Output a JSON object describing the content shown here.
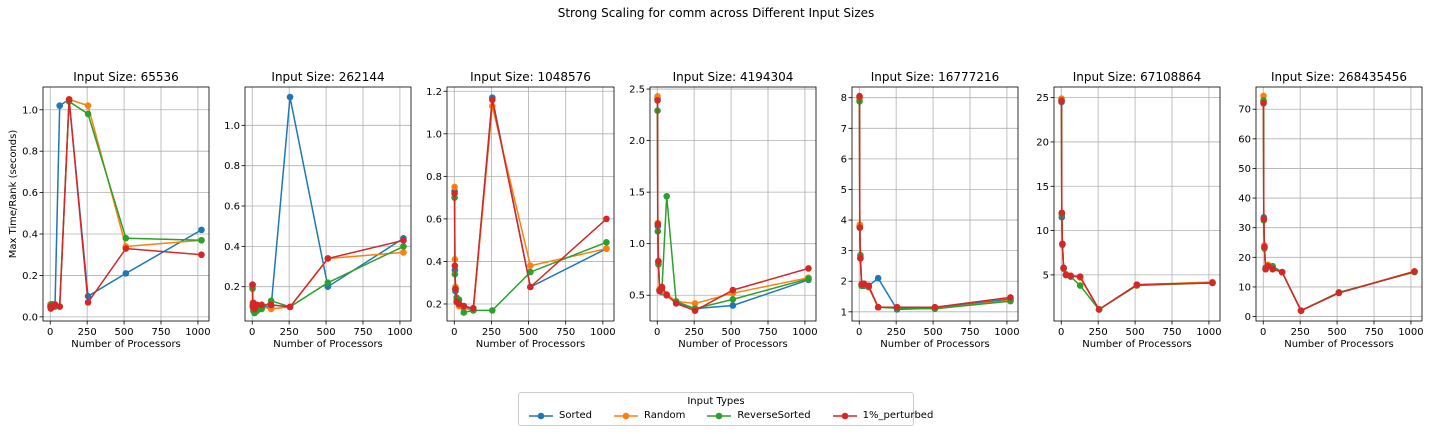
{
  "figure": {
    "suptitle": "Strong Scaling for comm across Different Input Sizes",
    "ylabel": "Max Time/Rank (seconds)",
    "xlabel": "Number of Processors"
  },
  "legend": {
    "title": "Input Types",
    "entries": [
      "Sorted",
      "Random",
      "ReverseSorted",
      "1%_perturbed"
    ]
  },
  "colors": {
    "Sorted": "#1f77b4",
    "Random": "#ff7f0e",
    "ReverseSorted": "#2ca02c",
    "1%_perturbed": "#d62728"
  },
  "chart_data": [
    {
      "type": "line",
      "title": "Input Size: 65536",
      "x": [
        2,
        4,
        8,
        16,
        32,
        64,
        128,
        256,
        512,
        1024
      ],
      "xlim": [
        -49,
        1075
      ],
      "ylim": [
        -0.02,
        1.11
      ],
      "xticks": [
        0,
        250,
        500,
        750,
        1000
      ],
      "xtick_labels": [
        "0",
        "250",
        "500",
        "750",
        "1000"
      ],
      "yticks": [
        0.0,
        0.2,
        0.4,
        0.6,
        0.8,
        1.0
      ],
      "ytick_labels": [
        "0.0",
        "0.2",
        "0.4",
        "0.6",
        "0.8",
        "1.0"
      ],
      "series": [
        {
          "name": "Sorted",
          "values": [
            0.06,
            0.05,
            0.05,
            0.06,
            0.05,
            1.02,
            1.05,
            0.1,
            0.21,
            0.42
          ]
        },
        {
          "name": "Random",
          "values": [
            0.05,
            0.06,
            0.05,
            0.06,
            0.06,
            0.05,
            1.05,
            1.02,
            0.34,
            0.37
          ]
        },
        {
          "name": "ReverseSorted",
          "values": [
            0.05,
            0.05,
            0.06,
            0.05,
            0.05,
            0.05,
            1.04,
            0.98,
            0.38,
            0.37
          ]
        },
        {
          "name": "1%_perturbed",
          "values": [
            0.05,
            0.04,
            0.05,
            0.05,
            0.06,
            0.05,
            1.05,
            0.07,
            0.33,
            0.3
          ]
        }
      ]
    },
    {
      "type": "line",
      "title": "Input Size: 262144",
      "x": [
        2,
        4,
        8,
        16,
        32,
        64,
        128,
        256,
        512,
        1024
      ],
      "xlim": [
        -49,
        1075
      ],
      "ylim": [
        0.03,
        1.19
      ],
      "xticks": [
        0,
        250,
        500,
        750,
        1000
      ],
      "xtick_labels": [
        "0",
        "250",
        "500",
        "750",
        "1000"
      ],
      "yticks": [
        0.2,
        0.4,
        0.6,
        0.8,
        1.0
      ],
      "ytick_labels": [
        "0.2",
        "0.4",
        "0.6",
        "0.8",
        "1.0"
      ],
      "series": [
        {
          "name": "Sorted",
          "values": [
            0.21,
            0.11,
            0.09,
            0.07,
            0.09,
            0.1,
            0.1,
            1.14,
            0.2,
            0.44
          ]
        },
        {
          "name": "Random",
          "values": [
            0.2,
            0.12,
            0.1,
            0.08,
            0.1,
            0.1,
            0.09,
            0.1,
            0.34,
            0.37
          ]
        },
        {
          "name": "ReverseSorted",
          "values": [
            0.19,
            0.11,
            0.08,
            0.07,
            0.08,
            0.09,
            0.13,
            0.1,
            0.22,
            0.4
          ]
        },
        {
          "name": "1%_perturbed",
          "values": [
            0.21,
            0.1,
            0.12,
            0.09,
            0.11,
            0.11,
            0.11,
            0.1,
            0.34,
            0.43
          ]
        }
      ]
    },
    {
      "type": "line",
      "title": "Input Size: 1048576",
      "x": [
        2,
        4,
        8,
        16,
        32,
        64,
        128,
        256,
        512,
        1024
      ],
      "xlim": [
        -49,
        1075
      ],
      "ylim": [
        0.12,
        1.22
      ],
      "xticks": [
        0,
        250,
        500,
        750,
        1000
      ],
      "xtick_labels": [
        "0",
        "250",
        "500",
        "750",
        "1000"
      ],
      "yticks": [
        0.2,
        0.4,
        0.6,
        0.8,
        1.0,
        1.2
      ],
      "ytick_labels": [
        "0.2",
        "0.4",
        "0.6",
        "0.8",
        "1.0",
        "1.2"
      ],
      "series": [
        {
          "name": "Sorted",
          "values": [
            0.73,
            0.36,
            0.26,
            0.21,
            0.2,
            0.19,
            0.17,
            1.17,
            0.28,
            0.46
          ]
        },
        {
          "name": "Random",
          "values": [
            0.75,
            0.41,
            0.28,
            0.22,
            0.19,
            0.18,
            0.17,
            1.13,
            0.38,
            0.46
          ]
        },
        {
          "name": "ReverseSorted",
          "values": [
            0.7,
            0.34,
            0.27,
            0.23,
            0.22,
            0.16,
            0.17,
            0.17,
            0.35,
            0.49
          ]
        },
        {
          "name": "1%_perturbed",
          "values": [
            0.72,
            0.38,
            0.27,
            0.21,
            0.2,
            0.19,
            0.18,
            1.16,
            0.28,
            0.6
          ]
        }
      ]
    },
    {
      "type": "line",
      "title": "Input Size: 4194304",
      "x": [
        2,
        4,
        8,
        16,
        32,
        64,
        128,
        256,
        512,
        1024
      ],
      "xlim": [
        -49,
        1075
      ],
      "ylim": [
        0.25,
        2.52
      ],
      "xticks": [
        0,
        250,
        500,
        750,
        1000
      ],
      "xtick_labels": [
        "0",
        "250",
        "500",
        "750",
        "1000"
      ],
      "yticks": [
        0.5,
        1.0,
        1.5,
        2.0,
        2.5
      ],
      "ytick_labels": [
        "0.5",
        "1.0",
        "1.5",
        "2.0",
        "2.5"
      ],
      "series": [
        {
          "name": "Sorted",
          "values": [
            2.41,
            1.17,
            0.82,
            0.55,
            0.53,
            0.5,
            0.43,
            0.37,
            0.4,
            0.65
          ]
        },
        {
          "name": "Random",
          "values": [
            2.43,
            1.2,
            0.83,
            0.56,
            0.54,
            0.51,
            0.44,
            0.42,
            0.52,
            0.67
          ]
        },
        {
          "name": "ReverseSorted",
          "values": [
            2.29,
            1.12,
            0.8,
            0.55,
            0.57,
            1.46,
            0.44,
            0.37,
            0.46,
            0.66
          ]
        },
        {
          "name": "1%_perturbed",
          "values": [
            2.39,
            1.19,
            0.83,
            0.54,
            0.58,
            0.5,
            0.42,
            0.35,
            0.55,
            0.76
          ]
        }
      ]
    },
    {
      "type": "line",
      "title": "Input Size: 16777216",
      "x": [
        2,
        4,
        8,
        16,
        32,
        64,
        128,
        256,
        512,
        1024
      ],
      "xlim": [
        -49,
        1075
      ],
      "ylim": [
        0.7,
        8.35
      ],
      "xticks": [
        0,
        250,
        500,
        750,
        1000
      ],
      "xtick_labels": [
        "0",
        "250",
        "500",
        "750",
        "1000"
      ],
      "yticks": [
        1,
        2,
        3,
        4,
        5,
        6,
        7,
        8
      ],
      "ytick_labels": [
        "1",
        "2",
        "3",
        "4",
        "5",
        "6",
        "7",
        "8"
      ],
      "series": [
        {
          "name": "Sorted",
          "values": [
            8.0,
            3.8,
            2.75,
            1.9,
            1.85,
            1.85,
            2.1,
            1.08,
            1.12,
            1.42
          ]
        },
        {
          "name": "Random",
          "values": [
            7.95,
            3.85,
            2.8,
            1.9,
            1.9,
            1.8,
            1.15,
            1.15,
            1.1,
            1.38
          ]
        },
        {
          "name": "ReverseSorted",
          "values": [
            7.88,
            3.75,
            2.85,
            1.85,
            1.88,
            1.82,
            1.15,
            1.12,
            1.1,
            1.35
          ]
        },
        {
          "name": "1%_perturbed",
          "values": [
            8.05,
            3.75,
            2.75,
            1.9,
            1.92,
            1.85,
            1.15,
            1.15,
            1.15,
            1.47
          ]
        }
      ]
    },
    {
      "type": "line",
      "title": "Input Size: 67108864",
      "x": [
        2,
        4,
        8,
        16,
        32,
        64,
        128,
        256,
        512,
        1024
      ],
      "xlim": [
        -49,
        1075
      ],
      "ylim": [
        -0.2,
        26.2
      ],
      "xticks": [
        0,
        250,
        500,
        750,
        1000
      ],
      "xtick_labels": [
        "0",
        "250",
        "500",
        "750",
        "1000"
      ],
      "yticks": [
        5,
        10,
        15,
        20,
        25
      ],
      "ytick_labels": [
        "5",
        "10",
        "15",
        "20",
        "25"
      ],
      "series": [
        {
          "name": "Sorted",
          "values": [
            24.5,
            11.5,
            8.4,
            5.8,
            5.0,
            4.9,
            4.8,
            1.1,
            3.9,
            4.1
          ]
        },
        {
          "name": "Random",
          "values": [
            24.9,
            12.0,
            8.5,
            5.7,
            5.1,
            4.9,
            4.7,
            1.1,
            3.9,
            4.2
          ]
        },
        {
          "name": "ReverseSorted",
          "values": [
            24.7,
            11.8,
            8.5,
            5.7,
            5.0,
            4.8,
            3.8,
            1.1,
            3.8,
            4.1
          ]
        },
        {
          "name": "1%_perturbed",
          "values": [
            24.6,
            12.0,
            8.5,
            5.8,
            5.0,
            4.9,
            4.8,
            1.1,
            3.9,
            4.1
          ]
        }
      ]
    },
    {
      "type": "line",
      "title": "Input Size: 268435456",
      "x": [
        2,
        4,
        8,
        16,
        32,
        64,
        128,
        256,
        512,
        1024
      ],
      "xlim": [
        -49,
        1075
      ],
      "ylim": [
        -1.5,
        77.5
      ],
      "xticks": [
        0,
        250,
        500,
        750,
        1000
      ],
      "xtick_labels": [
        "0",
        "250",
        "500",
        "750",
        "1000"
      ],
      "yticks": [
        0,
        10,
        20,
        30,
        40,
        50,
        60,
        70
      ],
      "ytick_labels": [
        "0",
        "10",
        "20",
        "30",
        "40",
        "50",
        "60",
        "70"
      ],
      "series": [
        {
          "name": "Sorted",
          "values": [
            72.5,
            33.5,
            23.5,
            16.5,
            17.0,
            16.5,
            15.0,
            2.0,
            8.0,
            15.2
          ]
        },
        {
          "name": "Random",
          "values": [
            74.5,
            33.0,
            24.0,
            16.0,
            17.5,
            16.0,
            15.0,
            2.0,
            8.0,
            15.3
          ]
        },
        {
          "name": "ReverseSorted",
          "values": [
            73.0,
            32.5,
            23.0,
            16.0,
            17.0,
            17.0,
            15.0,
            2.0,
            8.2,
            15.0
          ]
        },
        {
          "name": "1%_perturbed",
          "values": [
            72.0,
            33.0,
            23.5,
            16.0,
            17.0,
            16.0,
            15.0,
            2.0,
            8.0,
            15.2
          ]
        }
      ]
    }
  ]
}
